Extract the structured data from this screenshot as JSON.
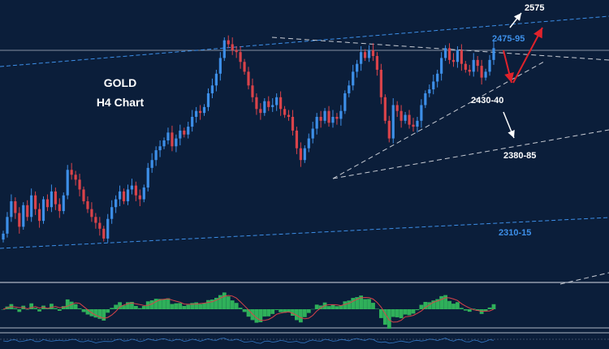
{
  "chart_title": {
    "line1": "GOLD",
    "line2": "H4 Chart"
  },
  "level_labels": [
    {
      "id": "target-2575",
      "text": "2575",
      "color": "#ffffff"
    },
    {
      "id": "resistance-2475-95",
      "text": "2475-95",
      "color": "#3d8fe8"
    },
    {
      "id": "support-2430-40",
      "text": "2430-40",
      "color": "#ffffff"
    },
    {
      "id": "support-2380-85",
      "text": "2380-85",
      "color": "#ffffff"
    },
    {
      "id": "support-2310-15",
      "text": "2310-15",
      "color": "#3d8fe8"
    }
  ],
  "colors": {
    "background": "#0b1e3a",
    "bull_candle": "#3d8fe8",
    "bear_candle": "#d9434a",
    "oscillator_bar": "#2fb05a",
    "oscillator_signal": "#d9434a",
    "channel_line": "#3d8fe8",
    "trend_line": "#c8ccd4",
    "arrow_bullish": "#e0222b",
    "arrow_neutral": "#ffffff"
  },
  "chart_data": {
    "type": "candlestick",
    "instrument": "GOLD",
    "timeframe": "H4",
    "closes": [
      2305,
      2322,
      2338,
      2326,
      2312,
      2334,
      2322,
      2344,
      2330,
      2318,
      2340,
      2332,
      2348,
      2335,
      2328,
      2344,
      2370,
      2365,
      2360,
      2350,
      2338,
      2330,
      2322,
      2316,
      2310,
      2300,
      2320,
      2332,
      2340,
      2348,
      2338,
      2350,
      2354,
      2344,
      2340,
      2352,
      2372,
      2380,
      2390,
      2394,
      2400,
      2408,
      2394,
      2402,
      2410,
      2406,
      2414,
      2424,
      2430,
      2428,
      2434,
      2448,
      2456,
      2468,
      2484,
      2502,
      2498,
      2492,
      2490,
      2480,
      2470,
      2456,
      2444,
      2432,
      2428,
      2440,
      2434,
      2436,
      2444,
      2432,
      2426,
      2424,
      2410,
      2392,
      2380,
      2392,
      2402,
      2412,
      2424,
      2420,
      2430,
      2418,
      2424,
      2422,
      2430,
      2448,
      2456,
      2470,
      2478,
      2490,
      2484,
      2492,
      2486,
      2472,
      2444,
      2420,
      2402,
      2436,
      2430,
      2420,
      2426,
      2416,
      2414,
      2420,
      2436,
      2448,
      2452,
      2460,
      2468,
      2484,
      2494,
      2482,
      2480,
      2492,
      2478,
      2472,
      2470,
      2482,
      2476,
      2464,
      2470,
      2482,
      2494
    ]
  }
}
